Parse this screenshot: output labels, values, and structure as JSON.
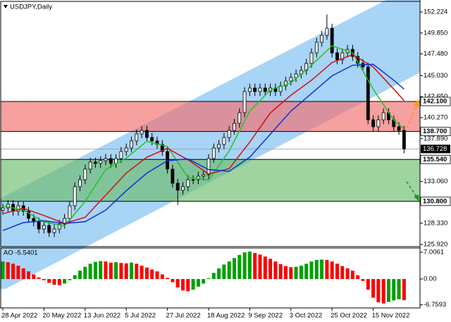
{
  "chart_data": [
    {
      "type": "candlestick",
      "title": "USDJPY,Daily",
      "categories": [
        "28 Apr 2022",
        null,
        null,
        null,
        null,
        null,
        null,
        null,
        "20 May 2022",
        null,
        null,
        null,
        null,
        null,
        null,
        null,
        "13 Jun 2022",
        null,
        null,
        null,
        null,
        null,
        null,
        null,
        "5 Jul 2022",
        null,
        null,
        null,
        null,
        null,
        null,
        null,
        "27 Jul 2022",
        null,
        null,
        null,
        null,
        null,
        null,
        null,
        "18 Aug 2022",
        null,
        null,
        null,
        null,
        null,
        null,
        null,
        "9 Sep 2022",
        null,
        null,
        null,
        null,
        null,
        null,
        null,
        "3 Oct 2022",
        null,
        null,
        null,
        null,
        null,
        null,
        null,
        "25 Oct 2022",
        null,
        null,
        null,
        null,
        null,
        null,
        null,
        "15 Nov 2022",
        null,
        null,
        null,
        null,
        null,
        null
      ],
      "open": [
        129.8,
        130.06,
        130.46,
        129.67,
        130.3,
        129.67,
        128.87,
        128.47,
        127.67,
        128.07,
        127.27,
        127.67,
        128.23,
        128.87,
        130.3,
        132.46,
        133.25,
        134.45,
        135.25,
        135.09,
        135.4,
        135.64,
        135.09,
        135.64,
        136.44,
        136.84,
        137.64,
        138.43,
        138.83,
        138.03,
        137.64,
        137.24,
        136.44,
        134.45,
        132.85,
        132.06,
        132.46,
        133.25,
        133.25,
        133.65,
        133.81,
        135.64,
        136.84,
        137.24,
        138.03,
        138.83,
        139.63,
        140.83,
        143.22,
        143.62,
        143.22,
        143.62,
        143.22,
        143.62,
        143.22,
        143.86,
        144.41,
        144.81,
        145.21,
        145.61,
        146.41,
        147.6,
        148.8,
        149.59,
        150.39,
        147.6,
        146.81,
        147.6,
        148.0,
        147.2,
        146.41,
        146.01,
        140.03,
        139.24,
        140.03,
        140.83,
        140.03,
        139.24,
        138.83
      ],
      "high": [
        130.56,
        130.96,
        130.96,
        130.8,
        130.8,
        130.17,
        129.37,
        128.97,
        128.57,
        128.57,
        128.17,
        128.73,
        129.37,
        130.8,
        132.96,
        133.75,
        134.95,
        135.75,
        135.75,
        135.9,
        136.14,
        136.14,
        136.14,
        136.94,
        137.34,
        138.14,
        138.93,
        139.33,
        139.33,
        138.53,
        138.14,
        137.74,
        136.94,
        134.95,
        133.35,
        132.96,
        133.75,
        133.75,
        134.15,
        134.31,
        136.14,
        137.34,
        137.74,
        138.53,
        139.33,
        140.13,
        141.33,
        143.72,
        144.12,
        144.12,
        144.12,
        144.12,
        144.12,
        144.12,
        144.36,
        144.91,
        145.31,
        145.71,
        146.11,
        146.91,
        148.1,
        149.3,
        150.09,
        151.94,
        150.89,
        148.1,
        148.1,
        148.5,
        148.5,
        147.7,
        146.91,
        146.51,
        140.53,
        140.53,
        141.33,
        141.33,
        140.53,
        139.74,
        139.33
      ],
      "low": [
        129.3,
        129.56,
        129.17,
        129.17,
        129.17,
        128.37,
        127.97,
        127.17,
        127.17,
        126.77,
        126.77,
        127.17,
        127.73,
        128.37,
        129.8,
        131.96,
        132.75,
        133.95,
        134.59,
        134.59,
        134.9,
        134.59,
        134.59,
        135.14,
        135.94,
        136.34,
        137.14,
        137.93,
        137.53,
        137.14,
        136.74,
        135.94,
        133.95,
        132.35,
        130.4,
        131.56,
        131.96,
        132.75,
        132.75,
        133.15,
        133.31,
        135.14,
        136.34,
        136.74,
        137.53,
        138.33,
        139.13,
        140.33,
        142.72,
        142.72,
        142.72,
        142.72,
        142.72,
        142.72,
        142.72,
        143.36,
        143.91,
        144.31,
        144.71,
        145.11,
        145.91,
        147.1,
        148.3,
        149.09,
        147.1,
        146.31,
        146.31,
        147.1,
        146.7,
        145.91,
        145.51,
        139.53,
        138.74,
        138.74,
        139.53,
        139.53,
        138.74,
        138.33,
        136.23
      ],
      "close": [
        130.06,
        130.46,
        129.67,
        130.3,
        129.67,
        128.87,
        128.47,
        127.67,
        128.07,
        127.27,
        127.67,
        128.23,
        128.87,
        130.3,
        132.46,
        133.25,
        134.45,
        135.25,
        135.09,
        135.4,
        135.64,
        135.09,
        135.64,
        136.44,
        136.84,
        137.64,
        138.43,
        138.83,
        138.03,
        137.64,
        137.24,
        136.44,
        134.45,
        132.85,
        132.06,
        132.46,
        133.25,
        133.25,
        133.65,
        133.81,
        135.64,
        136.84,
        137.24,
        138.03,
        138.83,
        139.63,
        140.83,
        143.22,
        143.62,
        143.22,
        143.62,
        143.22,
        143.62,
        143.22,
        143.86,
        144.41,
        144.81,
        145.21,
        145.61,
        146.41,
        147.6,
        148.8,
        149.59,
        150.39,
        147.6,
        146.81,
        147.6,
        148.0,
        147.2,
        146.41,
        146.01,
        140.03,
        139.24,
        140.03,
        140.83,
        140.03,
        139.24,
        138.83,
        136.728
      ],
      "bull_color": "#ffffff",
      "bear_color": "#000000",
      "ylim": [
        125.68,
        153.42
      ],
      "yticks": [
        152.224,
        {
          "value": 149.85,
          "label": "149.850"
        },
        {
          "value": 147.48,
          "label": "147.480"
        },
        {
          "value": 145.03,
          "label": "145.030"
        },
        {
          "value": 142.65,
          "label": "142.650"
        },
        {
          "value": 140.27,
          "label": "140.270"
        },
        {
          "value": 137.89,
          "label": "137.890"
        },
        {
          "value": 133.06,
          "label": "133.060"
        },
        {
          "value": 128.33,
          "label": "128.330"
        },
        {
          "value": 125.92,
          "label": "125.920"
        }
      ],
      "last_price": 136.728,
      "zones": [
        {
          "high": {
            "value": 142.1,
            "label": "142.100"
          },
          "low": {
            "value": 138.7,
            "label": "138.700"
          },
          "color": "#f26d6d"
        },
        {
          "high": {
            "value": 135.54,
            "label": "135.540"
          },
          "low": {
            "value": 130.8,
            "label": "130.800"
          },
          "color": "#6cbb6c"
        }
      ],
      "moving_averages": [
        {
          "color": "#22c322",
          "x": [
            0,
            4,
            8,
            12,
            16,
            20,
            24,
            28,
            32,
            36,
            40,
            44,
            48,
            52,
            56,
            60,
            64,
            68,
            72,
            76,
            78
          ],
          "values": [
            130.3,
            129.8,
            128.5,
            128.0,
            130.8,
            134.4,
            135.7,
            137.6,
            137.0,
            133.5,
            133.2,
            136.5,
            141.0,
            143.4,
            144.2,
            146.2,
            148.4,
            147.6,
            143.5,
            140.0,
            139.0
          ]
        },
        {
          "color": "#d01010",
          "x": [
            0,
            4,
            8,
            12,
            16,
            20,
            24,
            28,
            32,
            36,
            40,
            44,
            48,
            52,
            56,
            60,
            64,
            68,
            72,
            76,
            78
          ],
          "values": [
            129.4,
            130.0,
            129.2,
            128.3,
            129.0,
            131.5,
            134.0,
            135.8,
            136.8,
            135.5,
            133.9,
            134.5,
            137.5,
            140.8,
            142.8,
            144.5,
            146.5,
            147.4,
            146.0,
            143.5,
            142.2
          ]
        },
        {
          "color": "#1030d8",
          "x": [
            0,
            4,
            8,
            12,
            16,
            20,
            24,
            28,
            32,
            36,
            40,
            44,
            48,
            52,
            56,
            60,
            64,
            68,
            72,
            76,
            78
          ],
          "values": [
            127.5,
            128.4,
            128.6,
            128.3,
            128.5,
            129.8,
            132.0,
            134.0,
            135.4,
            135.6,
            134.4,
            134.2,
            135.8,
            138.4,
            141.0,
            143.0,
            145.0,
            146.2,
            146.3,
            144.5,
            143.5
          ]
        }
      ]
    },
    {
      "type": "bar",
      "title": "AO -5.5401",
      "values": [
        4.6,
        4.4,
        4.0,
        3.5,
        2.8,
        2.0,
        1.2,
        0.4,
        -0.3,
        -1.0,
        -1.5,
        -1.6,
        -1.2,
        -0.3,
        1.0,
        2.2,
        3.2,
        4.0,
        4.5,
        4.7,
        4.6,
        4.3,
        4.4,
        4.2,
        4.1,
        4.3,
        4.0,
        3.5,
        3.0,
        2.5,
        2.0,
        1.2,
        0.3,
        -0.8,
        -2.2,
        -3.0,
        -3.2,
        -2.8,
        -2.0,
        -1.2,
        0.2,
        1.6,
        2.8,
        3.8,
        4.6,
        5.5,
        6.3,
        7.0,
        7.2,
        6.8,
        6.4,
        5.9,
        5.3,
        4.6,
        3.9,
        3.4,
        3.1,
        3.2,
        3.5,
        4.0,
        4.6,
        5.0,
        5.1,
        5.0,
        4.6,
        4.0,
        3.4,
        2.8,
        2.2,
        1.0,
        -0.5,
        -2.8,
        -4.9,
        -6.1,
        -6.4,
        -6.0,
        -5.6,
        -5.3,
        -5.5401
      ],
      "up_color": "#00a000",
      "down_color": "#ff0000",
      "ylim": [
        -7.56,
        8.12
      ],
      "yticks": [
        7.0061,
        {
          "value": 0,
          "label": "0.00"
        },
        -6.7593
      ]
    }
  ]
}
